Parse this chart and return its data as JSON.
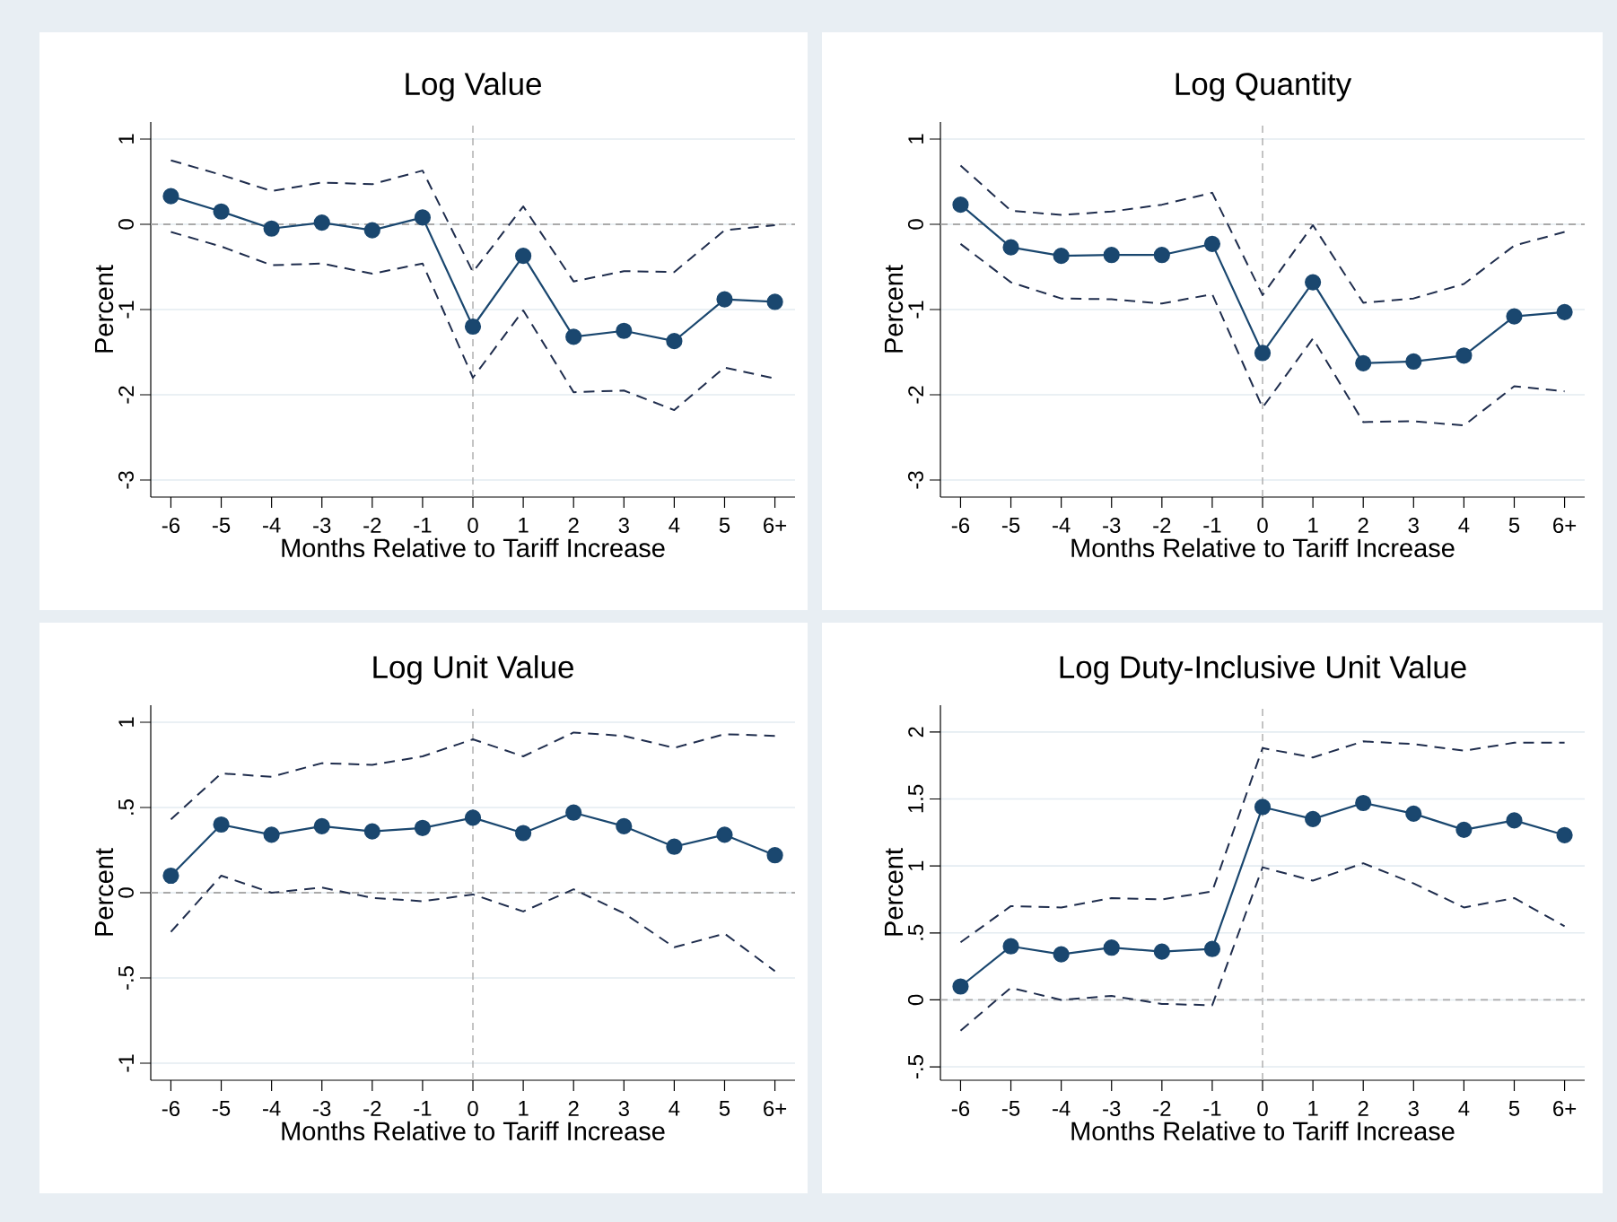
{
  "chart_data": [
    {
      "type": "line",
      "title": "Log Value",
      "xlabel": "Months Relative to Tariff Increase",
      "ylabel": "Percent",
      "categories": [
        "-6",
        "-5",
        "-4",
        "-3",
        "-2",
        "-1",
        "0",
        "1",
        "2",
        "3",
        "4",
        "5",
        "6+"
      ],
      "series": [
        {
          "color": "#1a476f",
          "marker": "circle",
          "line_style": "solid",
          "values": [
            0.33,
            0.15,
            -0.05,
            0.02,
            -0.07,
            0.08,
            -1.2,
            -0.37,
            -1.32,
            -1.25,
            -1.37,
            -0.88,
            -0.91
          ]
        },
        {
          "color": "#1f2d4d",
          "marker": "none",
          "line_style": "dashed",
          "values": [
            0.75,
            0.58,
            0.39,
            0.49,
            0.47,
            0.63,
            -0.56,
            0.21,
            -0.67,
            -0.55,
            -0.56,
            -0.07,
            -0.01
          ]
        },
        {
          "color": "#1f2d4d",
          "marker": "none",
          "line_style": "dashed",
          "values": [
            -0.09,
            -0.26,
            -0.48,
            -0.46,
            -0.58,
            -0.46,
            -1.8,
            -1.01,
            -1.97,
            -1.95,
            -2.18,
            -1.68,
            -1.81
          ]
        }
      ],
      "ylim": [
        -3.2,
        1.2
      ],
      "yticks": [
        -3,
        -2,
        -1,
        0,
        1
      ],
      "grid": "y",
      "ref_lines": [
        {
          "axis": "x",
          "value": "0",
          "color": "#aaaaaa",
          "line_style": "dashed"
        },
        {
          "axis": "y",
          "value": 0,
          "color": "#aaaaaa",
          "line_style": "dashed"
        }
      ]
    },
    {
      "type": "line",
      "title": "Log Quantity",
      "xlabel": "Months Relative to Tariff Increase",
      "ylabel": "Percent",
      "categories": [
        "-6",
        "-5",
        "-4",
        "-3",
        "-2",
        "-1",
        "0",
        "1",
        "2",
        "3",
        "4",
        "5",
        "6+"
      ],
      "series": [
        {
          "color": "#1a476f",
          "marker": "circle",
          "line_style": "solid",
          "values": [
            0.23,
            -0.27,
            -0.37,
            -0.36,
            -0.36,
            -0.23,
            -1.51,
            -0.68,
            -1.63,
            -1.61,
            -1.54,
            -1.08,
            -1.03
          ]
        },
        {
          "color": "#1f2d4d",
          "marker": "none",
          "line_style": "dashed",
          "values": [
            0.69,
            0.16,
            0.11,
            0.15,
            0.23,
            0.37,
            -0.83,
            -0.01,
            -0.92,
            -0.87,
            -0.7,
            -0.25,
            -0.09
          ]
        },
        {
          "color": "#1f2d4d",
          "marker": "none",
          "line_style": "dashed",
          "values": [
            -0.23,
            -0.68,
            -0.87,
            -0.88,
            -0.93,
            -0.82,
            -2.15,
            -1.34,
            -2.32,
            -2.31,
            -2.36,
            -1.9,
            -1.96
          ]
        }
      ],
      "ylim": [
        -3.2,
        1.2
      ],
      "yticks": [
        -3,
        -2,
        -1,
        0,
        1
      ],
      "grid": "y",
      "ref_lines": [
        {
          "axis": "x",
          "value": "0",
          "color": "#aaaaaa",
          "line_style": "dashed"
        },
        {
          "axis": "y",
          "value": 0,
          "color": "#aaaaaa",
          "line_style": "dashed"
        }
      ]
    },
    {
      "type": "line",
      "title": "Log Unit Value",
      "xlabel": "Months Relative to Tariff Increase",
      "ylabel": "Percent",
      "categories": [
        "-6",
        "-5",
        "-4",
        "-3",
        "-2",
        "-1",
        "0",
        "1",
        "2",
        "3",
        "4",
        "5",
        "6+"
      ],
      "series": [
        {
          "color": "#1a476f",
          "marker": "circle",
          "line_style": "solid",
          "values": [
            0.1,
            0.4,
            0.34,
            0.39,
            0.36,
            0.38,
            0.44,
            0.35,
            0.47,
            0.39,
            0.27,
            0.34,
            0.22
          ]
        },
        {
          "color": "#1f2d4d",
          "marker": "none",
          "line_style": "dashed",
          "values": [
            0.43,
            0.7,
            0.68,
            0.76,
            0.75,
            0.8,
            0.9,
            0.8,
            0.94,
            0.92,
            0.85,
            0.93,
            0.92
          ]
        },
        {
          "color": "#1f2d4d",
          "marker": "none",
          "line_style": "dashed",
          "values": [
            -0.23,
            0.1,
            0.0,
            0.03,
            -0.03,
            -0.05,
            -0.01,
            -0.11,
            0.02,
            -0.12,
            -0.32,
            -0.24,
            -0.46
          ]
        }
      ],
      "ylim": [
        -1.1,
        1.1
      ],
      "yticks": [
        {
          "value": -1,
          "label": "-1"
        },
        {
          "value": -0.5,
          "label": "-.5"
        },
        {
          "value": 0,
          "label": "0"
        },
        {
          "value": 0.5,
          "label": ".5"
        },
        {
          "value": 1,
          "label": "1"
        }
      ],
      "grid": "y",
      "ref_lines": [
        {
          "axis": "x",
          "value": "0",
          "color": "#aaaaaa",
          "line_style": "dashed"
        },
        {
          "axis": "y",
          "value": 0,
          "color": "#aaaaaa",
          "line_style": "dashed"
        }
      ]
    },
    {
      "type": "line",
      "title": "Log Duty-Inclusive Unit Value",
      "xlabel": "Months Relative to Tariff Increase",
      "ylabel": "Percent",
      "categories": [
        "-6",
        "-5",
        "-4",
        "-3",
        "-2",
        "-1",
        "0",
        "1",
        "2",
        "3",
        "4",
        "5",
        "6+"
      ],
      "series": [
        {
          "color": "#1a476f",
          "marker": "circle",
          "line_style": "solid",
          "values": [
            0.1,
            0.4,
            0.34,
            0.39,
            0.36,
            0.38,
            1.44,
            1.35,
            1.47,
            1.39,
            1.27,
            1.34,
            1.23
          ]
        },
        {
          "color": "#1f2d4d",
          "marker": "none",
          "line_style": "dashed",
          "values": [
            0.43,
            0.7,
            0.69,
            0.76,
            0.75,
            0.81,
            1.88,
            1.81,
            1.93,
            1.91,
            1.86,
            1.92,
            1.92
          ]
        },
        {
          "color": "#1f2d4d",
          "marker": "none",
          "line_style": "dashed",
          "values": [
            -0.23,
            0.09,
            0.0,
            0.03,
            -0.03,
            -0.04,
            0.99,
            0.89,
            1.02,
            0.87,
            0.69,
            0.76,
            0.55
          ]
        }
      ],
      "ylim": [
        -0.6,
        2.2
      ],
      "yticks": [
        {
          "value": -0.5,
          "label": "-.5"
        },
        {
          "value": 0,
          "label": "0"
        },
        {
          "value": 0.5,
          "label": ".5"
        },
        {
          "value": 1,
          "label": "1"
        },
        {
          "value": 1.5,
          "label": "1.5"
        },
        {
          "value": 2,
          "label": "2"
        }
      ],
      "grid": "y",
      "ref_lines": [
        {
          "axis": "x",
          "value": "0",
          "color": "#aaaaaa",
          "line_style": "dashed"
        },
        {
          "axis": "y",
          "value": 0,
          "color": "#aaaaaa",
          "line_style": "dashed"
        }
      ]
    }
  ]
}
